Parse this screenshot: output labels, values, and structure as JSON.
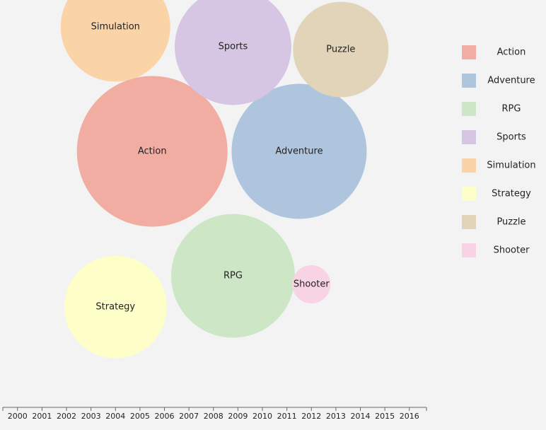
{
  "chart_data": {
    "type": "bubble",
    "title": "",
    "xlabel": "",
    "ylabel": "",
    "x_ticks": [
      "2000",
      "2001",
      "2002",
      "2003",
      "2004",
      "2005",
      "2006",
      "2007",
      "2008",
      "2009",
      "2010",
      "2011",
      "2012",
      "2013",
      "2014",
      "2015",
      "2016"
    ],
    "xlim": [
      1999.4,
      2016.7
    ],
    "legend_position": "right",
    "series": [
      {
        "name": "Action",
        "color": "#f2ada3",
        "size": 213,
        "x": 2005.5,
        "row": 2.55
      },
      {
        "name": "Adventure",
        "color": "#afc5de",
        "size": 191,
        "x": 2011.5,
        "row": 2.55
      },
      {
        "name": "RPG",
        "color": "#cde6c6",
        "size": 175,
        "x": 2008.8,
        "row": 4.75
      },
      {
        "name": "Sports",
        "color": "#d6c5e3",
        "size": 165,
        "x": 2008.8,
        "row": 0.7
      },
      {
        "name": "Simulation",
        "color": "#fad3a6",
        "size": 155,
        "x": 2004.0,
        "row": 0.35
      },
      {
        "name": "Strategy",
        "color": "#fefec8",
        "size": 145,
        "x": 2004.0,
        "row": 5.3
      },
      {
        "name": "Puzzle",
        "color": "#e2d4b9",
        "size": 135,
        "x": 2013.2,
        "row": 0.75
      },
      {
        "name": "Shooter",
        "color": "#f8d3e4",
        "size": 54,
        "x": 2012.0,
        "row": 4.9
      }
    ]
  }
}
